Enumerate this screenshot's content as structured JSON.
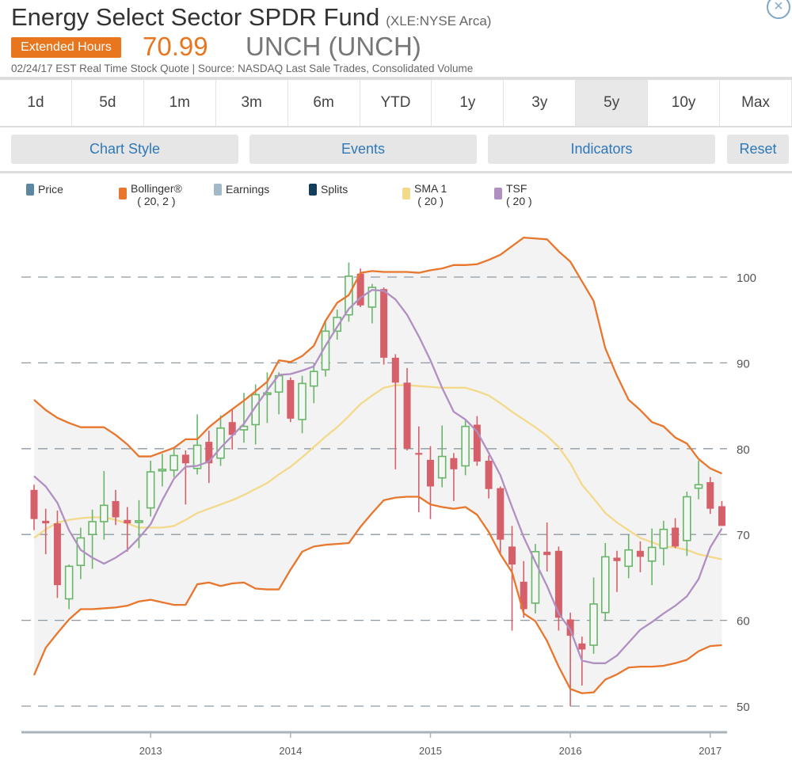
{
  "header": {
    "title": "Energy Select Sector SPDR Fund",
    "symbol": "(XLE:NYSE Arca)",
    "badge": "Extended Hours",
    "price": "70.99",
    "change": "UNCH (UNCH)",
    "subline": "02/24/17 EST Real Time Stock Quote | Source: NASDAQ Last Sale Trades, Consolidated Volume",
    "close_icon": "close-circle-icon"
  },
  "periods": [
    {
      "label": "1d"
    },
    {
      "label": "5d"
    },
    {
      "label": "1m"
    },
    {
      "label": "3m"
    },
    {
      "label": "6m"
    },
    {
      "label": "YTD"
    },
    {
      "label": "1y"
    },
    {
      "label": "3y"
    },
    {
      "label": "5y",
      "selected": true
    },
    {
      "label": "10y"
    },
    {
      "label": "Max"
    }
  ],
  "buttons": {
    "chart_style": "Chart Style",
    "events": "Events",
    "indicators": "Indicators",
    "reset": "Reset"
  },
  "legend": [
    {
      "label": "Price",
      "color": "#5b87a3"
    },
    {
      "label": "Bollinger®",
      "params": "( 20, 2 )",
      "color": "#e8762c"
    },
    {
      "label": "Earnings",
      "color": "#a3b9c8"
    },
    {
      "label": "Splits",
      "color": "#143d5c"
    },
    {
      "label": "SMA 1",
      "params": "( 20 )",
      "color": "#f3d98a"
    },
    {
      "label": "TSF",
      "params": "( 20 )",
      "color": "#b08fc2"
    }
  ],
  "chart_data": {
    "type": "candlestick",
    "interval": "monthly",
    "ylim": [
      48,
      106
    ],
    "yticks": [
      50,
      60,
      70,
      80,
      90,
      100
    ],
    "xticks": [
      "2013",
      "2014",
      "2015",
      "2016",
      "2017"
    ],
    "grid": "horizontal dashed",
    "colors": {
      "up": "#6ab56a",
      "down": "#d6606a",
      "bollinger": "#e8762c",
      "band_fill": "#f3f3f3",
      "sma": "#f3d98a",
      "tsf": "#b08fc2",
      "grid": "#8e9aa3"
    },
    "candles_fields": [
      "month",
      "open",
      "high",
      "low",
      "close"
    ],
    "candles": [
      [
        "2012-03",
        75.2,
        75.8,
        70.5,
        71.8
      ],
      [
        "2012-04",
        71.6,
        73.0,
        67.7,
        71.3
      ],
      [
        "2012-05",
        71.3,
        72.8,
        62.6,
        64.1
      ],
      [
        "2012-06",
        62.5,
        66.5,
        61.3,
        66.3
      ],
      [
        "2012-07",
        66.4,
        70.8,
        64.8,
        69.6
      ],
      [
        "2012-08",
        70.0,
        72.9,
        66.0,
        71.5
      ],
      [
        "2012-09",
        71.5,
        77.4,
        69.4,
        73.4
      ],
      [
        "2012-10",
        73.9,
        75.2,
        71.1,
        72.0
      ],
      [
        "2012-11",
        71.7,
        73.2,
        68.0,
        71.3
      ],
      [
        "2012-12",
        71.5,
        74.0,
        68.4,
        71.6
      ],
      [
        "2013-01",
        73.1,
        78.6,
        72.1,
        77.3
      ],
      [
        "2013-02",
        77.5,
        79.4,
        75.6,
        77.6
      ],
      [
        "2013-03",
        77.5,
        80.0,
        76.7,
        79.2
      ],
      [
        "2013-04",
        79.3,
        79.8,
        73.5,
        78.3
      ],
      [
        "2013-05",
        77.7,
        84.0,
        77.0,
        80.4
      ],
      [
        "2013-06",
        80.8,
        82.1,
        76.0,
        78.3
      ],
      [
        "2013-07",
        78.9,
        83.9,
        78.0,
        82.4
      ],
      [
        "2013-08",
        83.1,
        84.7,
        79.9,
        81.6
      ],
      [
        "2013-09",
        82.2,
        86.5,
        80.7,
        82.6
      ],
      [
        "2013-10",
        82.8,
        87.5,
        80.5,
        86.3
      ],
      [
        "2013-11",
        86.4,
        88.9,
        83.0,
        86.5
      ],
      [
        "2013-12",
        86.6,
        88.9,
        84.0,
        88.5
      ],
      [
        "2014-01",
        88.0,
        88.3,
        83.1,
        83.5
      ],
      [
        "2014-02",
        83.4,
        88.5,
        81.8,
        87.6
      ],
      [
        "2014-03",
        87.3,
        90.0,
        85.3,
        89.0
      ],
      [
        "2014-04",
        89.2,
        95.0,
        88.4,
        93.7
      ],
      [
        "2014-05",
        93.7,
        96.2,
        92.7,
        95.3
      ],
      [
        "2014-06",
        95.6,
        101.7,
        94.8,
        100.1
      ],
      [
        "2014-07",
        100.4,
        101.0,
        96.5,
        96.7
      ],
      [
        "2014-08",
        96.5,
        99.2,
        94.6,
        98.8
      ],
      [
        "2014-09",
        98.6,
        98.8,
        89.8,
        90.6
      ],
      [
        "2014-10",
        90.6,
        91.0,
        77.6,
        87.7
      ],
      [
        "2014-11",
        87.7,
        89.4,
        79.8,
        80.0
      ],
      [
        "2014-12",
        79.5,
        82.6,
        72.6,
        79.3
      ],
      [
        "2015-01",
        78.7,
        80.3,
        71.8,
        75.6
      ],
      [
        "2015-02",
        76.6,
        82.7,
        75.5,
        79.1
      ],
      [
        "2015-03",
        78.9,
        79.5,
        73.9,
        77.6
      ],
      [
        "2015-04",
        78.0,
        83.3,
        76.9,
        82.6
      ],
      [
        "2015-05",
        82.8,
        83.8,
        78.0,
        78.5
      ],
      [
        "2015-06",
        78.6,
        79.2,
        74.2,
        75.3
      ],
      [
        "2015-07",
        75.4,
        75.6,
        67.7,
        69.4
      ],
      [
        "2015-08",
        68.6,
        71.0,
        58.8,
        66.5
      ],
      [
        "2015-09",
        64.5,
        66.9,
        60.3,
        61.3
      ],
      [
        "2015-10",
        62.0,
        68.9,
        60.8,
        68.0
      ],
      [
        "2015-11",
        68.0,
        71.4,
        65.7,
        67.6
      ],
      [
        "2015-12",
        68.1,
        68.6,
        58.8,
        60.3
      ],
      [
        "2016-01",
        60.1,
        60.9,
        50.0,
        58.2
      ],
      [
        "2016-02",
        57.3,
        58.1,
        52.4,
        56.6
      ],
      [
        "2016-03",
        57.1,
        65.0,
        56.1,
        61.9
      ],
      [
        "2016-04",
        60.9,
        69.0,
        59.9,
        67.4
      ],
      [
        "2016-05",
        67.3,
        68.1,
        63.3,
        66.9
      ],
      [
        "2016-06",
        66.3,
        70.0,
        64.9,
        68.2
      ],
      [
        "2016-07",
        68.1,
        69.2,
        65.6,
        67.4
      ],
      [
        "2016-08",
        66.9,
        70.7,
        64.1,
        68.5
      ],
      [
        "2016-09",
        68.4,
        71.6,
        66.4,
        70.6
      ],
      [
        "2016-10",
        70.8,
        71.9,
        68.4,
        68.6
      ],
      [
        "2016-11",
        69.3,
        75.0,
        67.5,
        74.4
      ],
      [
        "2016-12",
        75.4,
        78.6,
        74.1,
        75.8
      ],
      [
        "2017-01",
        76.1,
        76.7,
        72.4,
        73.0
      ],
      [
        "2017-02",
        73.3,
        73.9,
        71.0,
        71.0
      ]
    ],
    "bollinger_upper": [
      85.7,
      84.5,
      83.6,
      83.0,
      82.5,
      82.5,
      82.5,
      81.6,
      80.5,
      79.1,
      79.1,
      79.6,
      80.1,
      81.1,
      81.1,
      82.5,
      83.6,
      84.6,
      85.6,
      86.7,
      87.8,
      90.3,
      90.1,
      90.8,
      92.0,
      94.9,
      97.0,
      97.9,
      100.5,
      100.7,
      100.6,
      100.6,
      100.6,
      100.5,
      100.8,
      101.0,
      101.4,
      101.4,
      101.5,
      102.0,
      102.6,
      103.6,
      104.6,
      104.5,
      104.4,
      103.0,
      101.8,
      99.5,
      97.2,
      91.7,
      88.5,
      85.7,
      84.5,
      83.1,
      82.6,
      81.3,
      80.6,
      78.8,
      77.7,
      77.1
    ],
    "bollinger_lower": [
      53.6,
      56.8,
      58.5,
      60.1,
      61.3,
      61.3,
      61.4,
      61.5,
      61.7,
      62.2,
      62.4,
      62.1,
      61.8,
      61.8,
      64.2,
      64.4,
      64.0,
      64.3,
      64.4,
      63.7,
      63.6,
      63.6,
      65.9,
      68.0,
      68.6,
      68.8,
      68.9,
      69.0,
      70.9,
      72.5,
      74.0,
      74.3,
      74.4,
      74.4,
      73.5,
      73.2,
      73.0,
      73.2,
      72.3,
      70.3,
      67.7,
      65.6,
      60.8,
      59.9,
      57.6,
      54.6,
      52.0,
      51.5,
      51.6,
      53.1,
      53.7,
      54.5,
      54.6,
      54.6,
      54.7,
      55.0,
      55.4,
      56.4,
      57.0,
      57.1
    ],
    "sma_20": [
      69.6,
      70.6,
      71.4,
      71.7,
      71.9,
      72.0,
      72.0,
      71.7,
      71.3,
      70.8,
      70.8,
      70.8,
      71.0,
      71.7,
      72.5,
      73.0,
      73.5,
      74.0,
      74.6,
      75.3,
      76.0,
      77.0,
      77.9,
      79.0,
      80.2,
      81.4,
      82.5,
      83.8,
      85.2,
      86.2,
      87.1,
      87.4,
      87.4,
      87.3,
      87.2,
      87.1,
      87.1,
      87.1,
      86.7,
      86.2,
      85.3,
      84.3,
      83.4,
      82.5,
      81.5,
      80.2,
      78.3,
      75.8,
      74.2,
      72.5,
      71.4,
      70.5,
      69.6,
      69.1,
      68.6,
      68.5,
      68.2,
      67.7,
      67.4,
      67.1
    ],
    "tsf_20": [
      76.8,
      75.6,
      73.7,
      70.5,
      68.2,
      67.3,
      66.6,
      67.3,
      68.2,
      69.6,
      71.2,
      74.0,
      76.5,
      77.9,
      78.0,
      78.5,
      80.1,
      81.5,
      82.9,
      84.9,
      86.8,
      88.6,
      88.7,
      89.1,
      89.6,
      92.0,
      94.2,
      96.3,
      97.6,
      98.5,
      98.4,
      97.4,
      95.6,
      93.1,
      90.3,
      87.1,
      84.3,
      83.4,
      82.0,
      79.5,
      76.9,
      73.2,
      69.7,
      66.8,
      64.0,
      60.8,
      58.9,
      55.3,
      55.0,
      55.0,
      55.9,
      57.4,
      58.9,
      59.8,
      60.8,
      61.7,
      62.8,
      64.8,
      68.5,
      70.7
    ]
  }
}
